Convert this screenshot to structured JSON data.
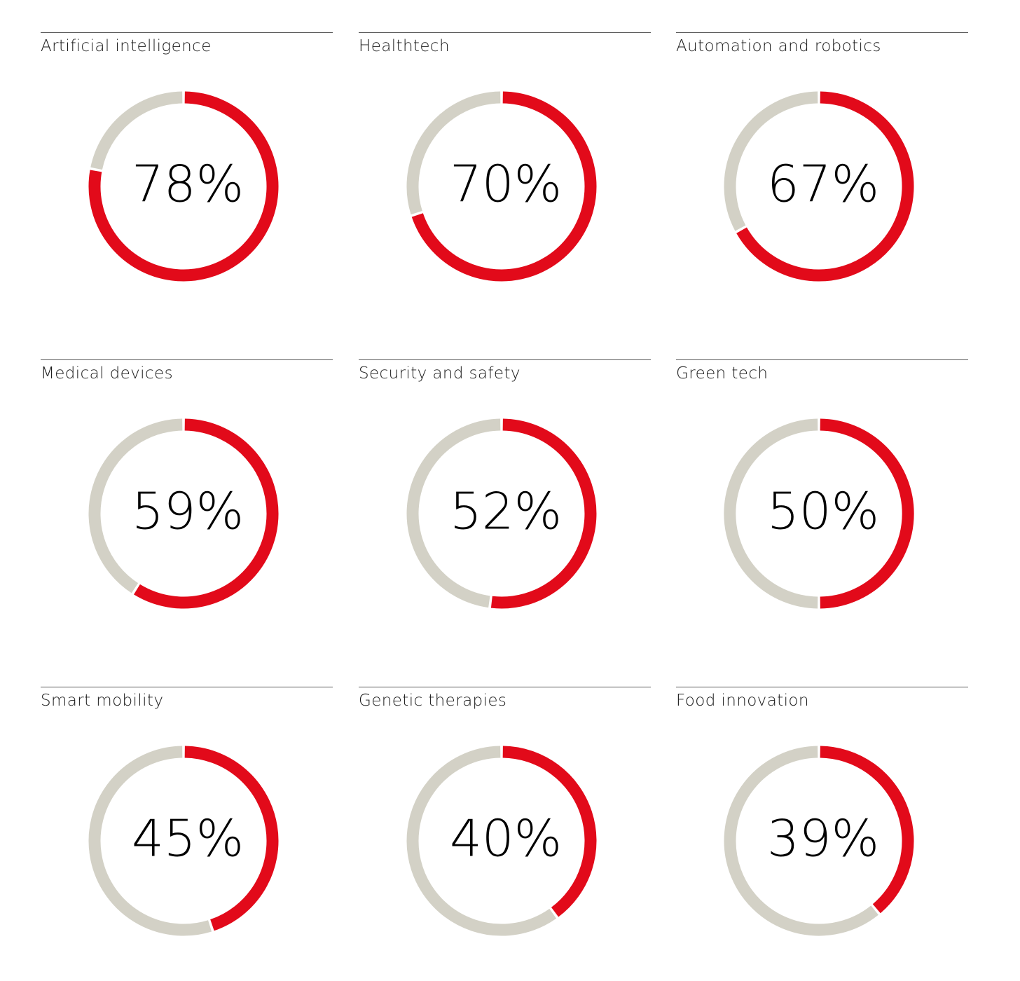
{
  "chart_data": {
    "type": "pie",
    "style": "donut-grid",
    "colors": {
      "value": "#e20a1a",
      "remainder": "#d3d1c6",
      "rule": "#5a5a5a",
      "text": "#000000"
    },
    "items": [
      {
        "label": "Artificial intelligence",
        "value": 78,
        "display": "78%"
      },
      {
        "label": "Healthtech",
        "value": 70,
        "display": "70%"
      },
      {
        "label": "Automation and robotics",
        "value": 67,
        "display": "67%"
      },
      {
        "label": "Medical devices",
        "value": 59,
        "display": "59%"
      },
      {
        "label": "Security and safety",
        "value": 52,
        "display": "52%"
      },
      {
        "label": "Green tech",
        "value": 50,
        "display": "50%"
      },
      {
        "label": "Smart mobility",
        "value": 45,
        "display": "45%"
      },
      {
        "label": "Genetic therapies",
        "value": 40,
        "display": "40%"
      },
      {
        "label": "Food innovation",
        "value": 39,
        "display": "39%"
      }
    ]
  }
}
